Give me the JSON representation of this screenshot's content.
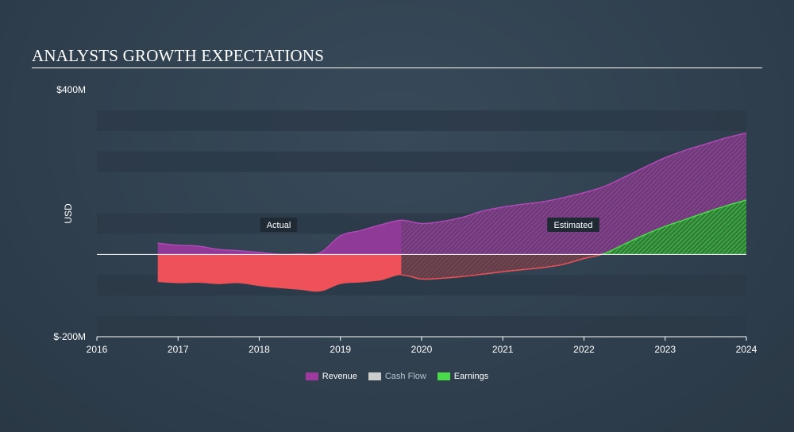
{
  "title": "ANALYSTS GROWTH EXPECTATIONS",
  "chart_data": {
    "type": "area",
    "ylabel": "USD",
    "xlabel": "",
    "ylim": [
      -200,
      400
    ],
    "xlim": [
      2016,
      2024.0
    ],
    "y_ticks": [
      {
        "value": 400,
        "label": "$400M"
      },
      {
        "value": -200,
        "label": "$-200M"
      }
    ],
    "x_ticks": [
      "2016",
      "2017",
      "2018",
      "2019",
      "2020",
      "2021",
      "2022",
      "2023",
      "2024"
    ],
    "grid": "horizontal bands",
    "actual_end": 2019.75,
    "annotations": {
      "actual": "Actual",
      "estimated": "Estimated"
    },
    "series": [
      {
        "name": "Revenue",
        "color": "#a0399e",
        "x": [
          2016.75,
          2017.0,
          2017.25,
          2017.5,
          2017.75,
          2018.0,
          2018.25,
          2018.5,
          2018.75,
          2019.0,
          2019.25,
          2019.5,
          2019.75,
          2020.0,
          2020.25,
          2020.5,
          2020.75,
          2021.0,
          2021.25,
          2021.5,
          2021.75,
          2022.0,
          2022.25,
          2022.5,
          2022.75,
          2023.0,
          2023.25,
          2023.5,
          2023.75,
          2024.0
        ],
        "values": [
          27,
          22,
          20,
          12,
          9,
          5,
          0,
          1,
          4,
          45,
          58,
          72,
          83,
          75,
          80,
          90,
          105,
          115,
          122,
          128,
          138,
          150,
          165,
          188,
          212,
          235,
          253,
          268,
          283,
          295
        ]
      },
      {
        "name": "Cash Flow",
        "color": "#cccccc",
        "x": [],
        "values": []
      },
      {
        "name": "Earnings",
        "color": "#4ad94a",
        "x": [
          2016.75,
          2017.0,
          2017.25,
          2017.5,
          2017.75,
          2018.0,
          2018.25,
          2018.5,
          2018.75,
          2019.0,
          2019.25,
          2019.5,
          2019.75,
          2020.0,
          2020.25,
          2020.5,
          2020.75,
          2021.0,
          2021.25,
          2021.5,
          2021.75,
          2022.0,
          2022.25,
          2022.5,
          2022.75,
          2023.0,
          2023.25,
          2023.5,
          2023.75,
          2024.0
        ],
        "values": [
          -67,
          -70,
          -69,
          -72,
          -70,
          -77,
          -82,
          -86,
          -90,
          -72,
          -68,
          -63,
          -50,
          -60,
          -58,
          -54,
          -48,
          -42,
          -37,
          -32,
          -24,
          -10,
          2,
          25,
          48,
          68,
          85,
          102,
          118,
          132
        ]
      }
    ]
  },
  "legend": [
    {
      "label": "Revenue",
      "color": "#a0399e",
      "muted": false
    },
    {
      "label": "Cash Flow",
      "color": "#cccccc",
      "muted": true
    },
    {
      "label": "Earnings",
      "color": "#4ad94a",
      "muted": false
    }
  ]
}
